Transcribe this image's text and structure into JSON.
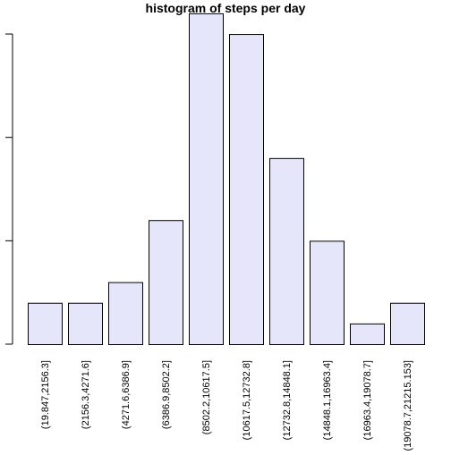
{
  "chart_data": {
    "type": "bar",
    "title": "histogram of steps per day",
    "xlabel": "",
    "ylabel": "",
    "categories": [
      "(19.847,2156.3]",
      "(2156.3,4271.6]",
      "(4271.6,6386.9]",
      "(6386.9,8502.2]",
      "(8502.2,10617.5]",
      "(10617.5,12732.8]",
      "(12732.8,14848.1]",
      "(14848.1,16963.4]",
      "(16963.4,19078.7]",
      "(19078.7,21215.153]"
    ],
    "values": [
      2,
      2,
      3,
      6,
      16,
      15,
      9,
      5,
      1,
      2
    ],
    "ylim": [
      0,
      16
    ],
    "yticks": [
      0,
      5,
      10,
      15
    ],
    "ytick_labels_visible": false,
    "grid": false,
    "legend": "none",
    "colors": {
      "bar_fill": "#e6e6fa",
      "bar_stroke": "#000000",
      "background": "#ffffff",
      "text": "#000000"
    }
  }
}
